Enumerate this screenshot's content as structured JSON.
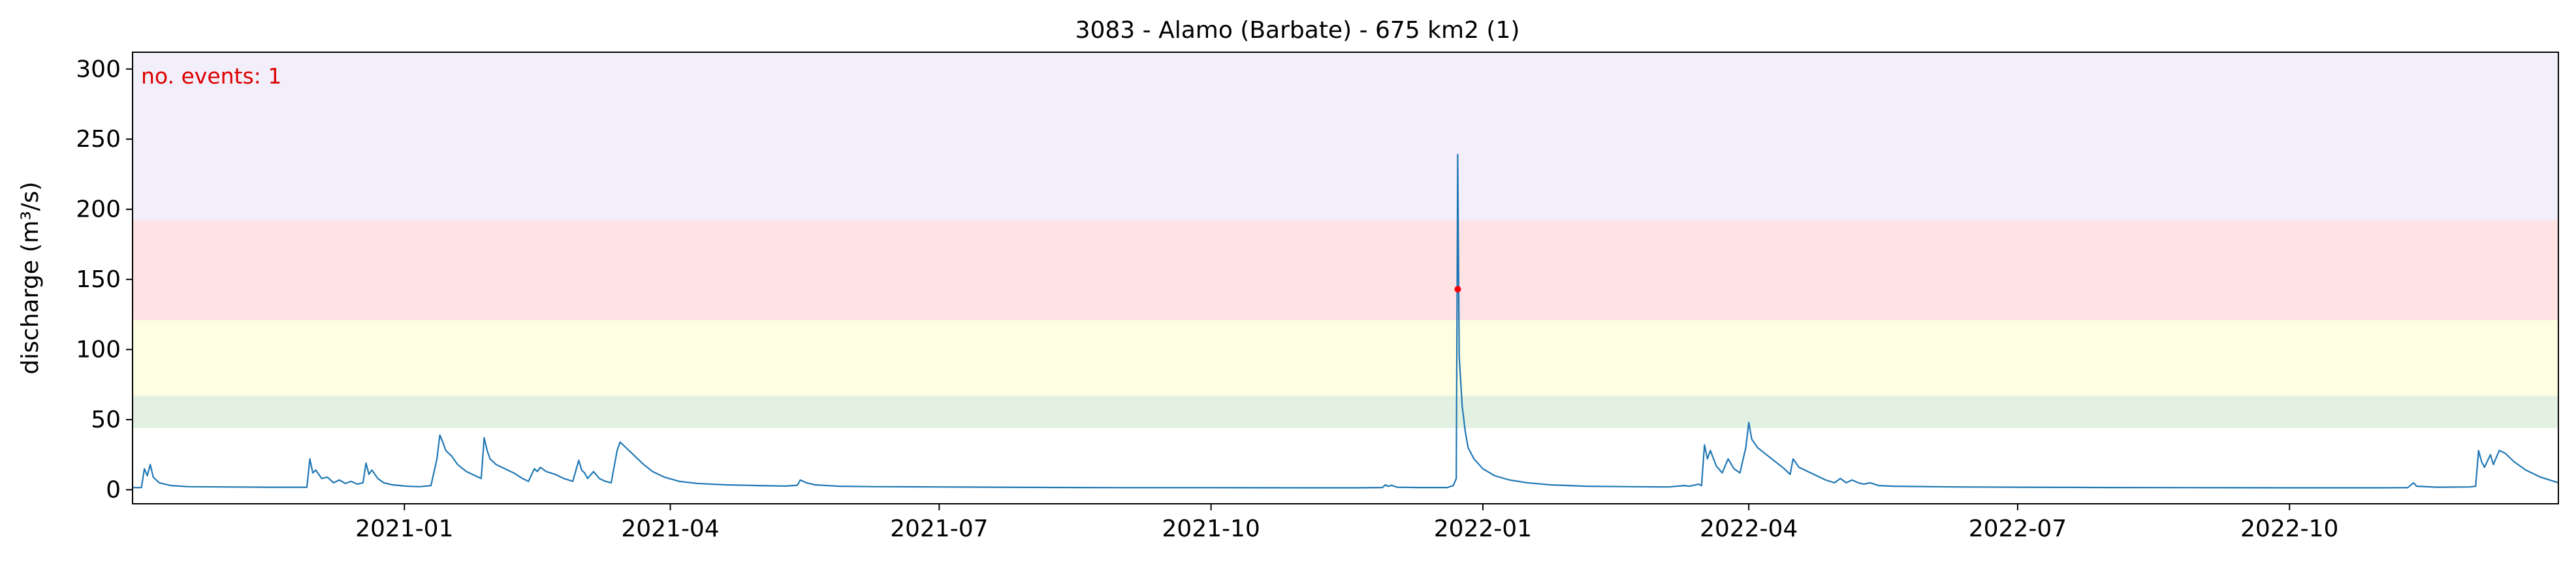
{
  "chart_data": {
    "type": "line",
    "title": "3083 - Alamo (Barbate) - 675 km2 (1)",
    "xlabel": "",
    "ylabel": "discharge (m³/s)",
    "annotation": "no. events: 1",
    "x_start": "2020-10-01",
    "x_end": "2022-12-31",
    "ylim": [
      -10,
      312
    ],
    "yticks": [
      0,
      50,
      100,
      150,
      200,
      250,
      300
    ],
    "xticks": [
      {
        "date": "2021-01-01",
        "label": "2021-01"
      },
      {
        "date": "2021-04-01",
        "label": "2021-04"
      },
      {
        "date": "2021-07-01",
        "label": "2021-07"
      },
      {
        "date": "2021-10-01",
        "label": "2021-10"
      },
      {
        "date": "2022-01-01",
        "label": "2022-01"
      },
      {
        "date": "2022-04-01",
        "label": "2022-04"
      },
      {
        "date": "2022-07-01",
        "label": "2022-07"
      },
      {
        "date": "2022-10-01",
        "label": "2022-10"
      }
    ],
    "threshold_bands": [
      {
        "from": 44,
        "to": 67,
        "color": "#e2f1e2"
      },
      {
        "from": 67,
        "to": 121,
        "color": "#fefee2"
      },
      {
        "from": 121,
        "to": 192,
        "color": "#fee2e4"
      },
      {
        "from": 192,
        "to": 312,
        "color": "#f2eefa"
      }
    ],
    "series": [
      {
        "color": "#1f77b4",
        "points": [
          [
            "2020-10-01",
            1.5
          ],
          [
            "2020-10-04",
            1.6
          ],
          [
            "2020-10-05",
            15
          ],
          [
            "2020-10-06",
            10
          ],
          [
            "2020-10-07",
            18
          ],
          [
            "2020-10-08",
            9
          ],
          [
            "2020-10-10",
            5
          ],
          [
            "2020-10-14",
            3
          ],
          [
            "2020-10-20",
            2.2
          ],
          [
            "2020-11-01",
            2
          ],
          [
            "2020-11-15",
            1.8
          ],
          [
            "2020-11-29",
            1.8
          ],
          [
            "2020-11-30",
            22
          ],
          [
            "2020-12-01",
            12
          ],
          [
            "2020-12-02",
            14
          ],
          [
            "2020-12-04",
            8
          ],
          [
            "2020-12-06",
            9
          ],
          [
            "2020-12-08",
            5
          ],
          [
            "2020-12-10",
            7
          ],
          [
            "2020-12-12",
            4.5
          ],
          [
            "2020-12-14",
            6
          ],
          [
            "2020-12-16",
            4
          ],
          [
            "2020-12-18",
            5
          ],
          [
            "2020-12-19",
            19
          ],
          [
            "2020-12-20",
            11
          ],
          [
            "2020-12-21",
            14
          ],
          [
            "2020-12-23",
            8
          ],
          [
            "2020-12-25",
            5
          ],
          [
            "2020-12-28",
            3.5
          ],
          [
            "2021-01-02",
            2.5
          ],
          [
            "2021-01-06",
            2.2
          ],
          [
            "2021-01-10",
            3
          ],
          [
            "2021-01-12",
            22
          ],
          [
            "2021-01-13",
            39
          ],
          [
            "2021-01-14",
            34
          ],
          [
            "2021-01-15",
            28
          ],
          [
            "2021-01-17",
            24
          ],
          [
            "2021-01-19",
            18
          ],
          [
            "2021-01-22",
            13
          ],
          [
            "2021-01-25",
            10
          ],
          [
            "2021-01-27",
            8
          ],
          [
            "2021-01-28",
            37
          ],
          [
            "2021-01-29",
            28
          ],
          [
            "2021-01-30",
            22
          ],
          [
            "2021-02-01",
            18
          ],
          [
            "2021-02-04",
            15
          ],
          [
            "2021-02-07",
            12
          ],
          [
            "2021-02-10",
            8
          ],
          [
            "2021-02-12",
            6
          ],
          [
            "2021-02-14",
            15
          ],
          [
            "2021-02-15",
            13
          ],
          [
            "2021-02-16",
            16
          ],
          [
            "2021-02-18",
            13
          ],
          [
            "2021-02-21",
            11
          ],
          [
            "2021-02-24",
            8
          ],
          [
            "2021-02-27",
            6
          ],
          [
            "2021-03-01",
            21
          ],
          [
            "2021-03-02",
            14
          ],
          [
            "2021-03-03",
            12
          ],
          [
            "2021-03-04",
            8
          ],
          [
            "2021-03-06",
            13
          ],
          [
            "2021-03-08",
            8
          ],
          [
            "2021-03-10",
            6
          ],
          [
            "2021-03-12",
            5
          ],
          [
            "2021-03-14",
            28
          ],
          [
            "2021-03-15",
            34
          ],
          [
            "2021-03-17",
            30
          ],
          [
            "2021-03-20",
            24
          ],
          [
            "2021-03-23",
            18
          ],
          [
            "2021-03-26",
            13
          ],
          [
            "2021-03-30",
            9
          ],
          [
            "2021-04-04",
            6
          ],
          [
            "2021-04-10",
            4.5
          ],
          [
            "2021-04-20",
            3.5
          ],
          [
            "2021-05-01",
            3
          ],
          [
            "2021-05-10",
            2.6
          ],
          [
            "2021-05-14",
            3.2
          ],
          [
            "2021-05-15",
            7
          ],
          [
            "2021-05-17",
            5
          ],
          [
            "2021-05-20",
            3.5
          ],
          [
            "2021-05-28",
            2.5
          ],
          [
            "2021-06-10",
            2.2
          ],
          [
            "2021-07-01",
            2
          ],
          [
            "2021-08-01",
            1.7
          ],
          [
            "2021-09-01",
            1.5
          ],
          [
            "2021-10-01",
            1.5
          ],
          [
            "2021-11-01",
            1.4
          ],
          [
            "2021-11-20",
            1.4
          ],
          [
            "2021-11-28",
            1.6
          ],
          [
            "2021-11-29",
            3.5
          ],
          [
            "2021-11-30",
            2.4
          ],
          [
            "2021-12-01",
            3.2
          ],
          [
            "2021-12-03",
            1.8
          ],
          [
            "2021-12-10",
            1.6
          ],
          [
            "2021-12-20",
            1.6
          ],
          [
            "2021-12-22",
            3
          ],
          [
            "2021-12-23",
            8
          ],
          [
            "2021-12-23T12:00",
            239
          ],
          [
            "2021-12-24",
            95
          ],
          [
            "2021-12-25",
            60
          ],
          [
            "2021-12-26",
            42
          ],
          [
            "2021-12-27",
            30
          ],
          [
            "2021-12-29",
            22
          ],
          [
            "2022-01-01",
            15
          ],
          [
            "2022-01-05",
            10
          ],
          [
            "2022-01-10",
            7
          ],
          [
            "2022-01-16",
            5
          ],
          [
            "2022-01-24",
            3.5
          ],
          [
            "2022-02-05",
            2.5
          ],
          [
            "2022-02-20",
            2.2
          ],
          [
            "2022-03-05",
            2
          ],
          [
            "2022-03-10",
            3
          ],
          [
            "2022-03-12",
            2.5
          ],
          [
            "2022-03-15",
            4
          ],
          [
            "2022-03-16",
            3
          ],
          [
            "2022-03-17",
            32
          ],
          [
            "2022-03-18",
            22
          ],
          [
            "2022-03-19",
            28
          ],
          [
            "2022-03-21",
            17
          ],
          [
            "2022-03-23",
            12
          ],
          [
            "2022-03-25",
            22
          ],
          [
            "2022-03-27",
            15
          ],
          [
            "2022-03-29",
            12
          ],
          [
            "2022-03-31",
            30
          ],
          [
            "2022-04-01",
            48
          ],
          [
            "2022-04-02",
            36
          ],
          [
            "2022-04-04",
            30
          ],
          [
            "2022-04-07",
            25
          ],
          [
            "2022-04-10",
            20
          ],
          [
            "2022-04-13",
            15
          ],
          [
            "2022-04-15",
            11
          ],
          [
            "2022-04-16",
            22
          ],
          [
            "2022-04-18",
            16
          ],
          [
            "2022-04-21",
            13
          ],
          [
            "2022-04-24",
            10
          ],
          [
            "2022-04-27",
            7
          ],
          [
            "2022-04-30",
            5
          ],
          [
            "2022-05-02",
            8
          ],
          [
            "2022-05-04",
            5
          ],
          [
            "2022-05-06",
            7
          ],
          [
            "2022-05-08",
            5
          ],
          [
            "2022-05-10",
            4
          ],
          [
            "2022-05-12",
            5
          ],
          [
            "2022-05-15",
            3
          ],
          [
            "2022-05-20",
            2.5
          ],
          [
            "2022-06-10",
            2
          ],
          [
            "2022-07-01",
            1.8
          ],
          [
            "2022-08-01",
            1.6
          ],
          [
            "2022-09-01",
            1.5
          ],
          [
            "2022-10-01",
            1.4
          ],
          [
            "2022-11-01",
            1.4
          ],
          [
            "2022-11-10",
            1.5
          ],
          [
            "2022-11-12",
            5
          ],
          [
            "2022-11-13",
            2.5
          ],
          [
            "2022-11-20",
            1.8
          ],
          [
            "2022-12-01",
            2
          ],
          [
            "2022-12-03",
            2.5
          ],
          [
            "2022-12-04",
            28
          ],
          [
            "2022-12-05",
            20
          ],
          [
            "2022-12-06",
            16
          ],
          [
            "2022-12-08",
            25
          ],
          [
            "2022-12-09",
            18
          ],
          [
            "2022-12-11",
            28
          ],
          [
            "2022-12-13",
            26
          ],
          [
            "2022-12-16",
            20
          ],
          [
            "2022-12-20",
            14
          ],
          [
            "2022-12-25",
            9
          ],
          [
            "2022-12-31",
            5
          ]
        ]
      }
    ],
    "event_markers": [
      {
        "date": "2021-12-23T12:00",
        "value": 143,
        "color": "#ff0000"
      }
    ]
  }
}
